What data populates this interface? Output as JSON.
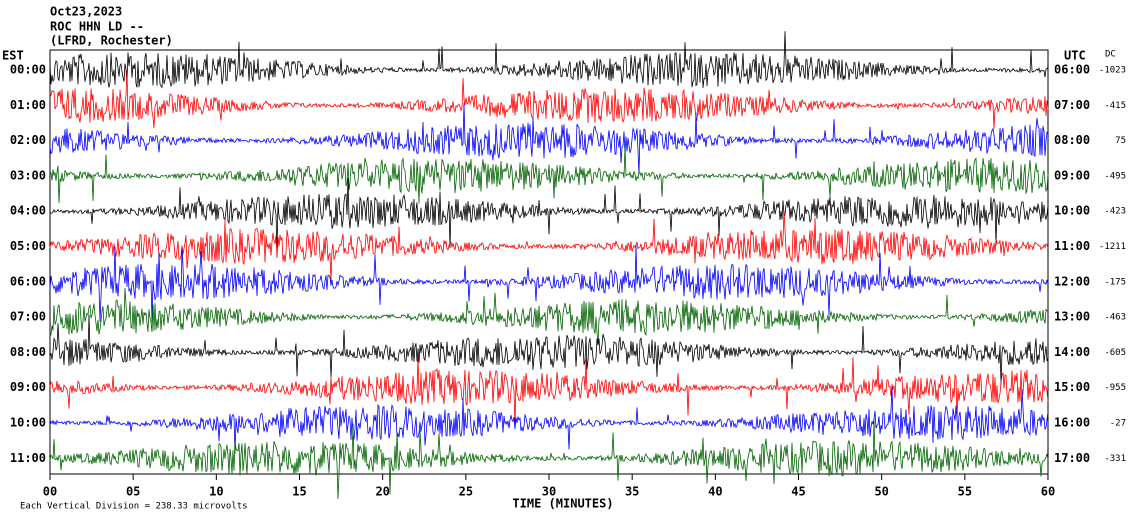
{
  "chart_data": {
    "type": "helicorder",
    "title_lines": [
      "Oct23,2023",
      "ROC HHN LD --",
      "(LFRD, Rochester)"
    ],
    "left_label": "EST",
    "right_label": "UTC",
    "dc_label": "DC",
    "xlabel": "TIME (MINUTES)",
    "footnote": "Each Vertical Division = 238.33 microvolts",
    "xlim": [
      0,
      60
    ],
    "xticks": [
      {
        "value": 0,
        "label": "00"
      },
      {
        "value": 5,
        "label": "05"
      },
      10,
      15,
      20,
      25,
      30,
      35,
      40,
      45,
      50,
      55,
      60
    ],
    "rows": [
      {
        "est": "00:00",
        "utc": "06:00",
        "dc": -1023,
        "color": "#000000"
      },
      {
        "est": "01:00",
        "utc": "07:00",
        "dc": -415,
        "color": "#ff0000"
      },
      {
        "est": "02:00",
        "utc": "08:00",
        "dc": 75,
        "color": "#0000ff"
      },
      {
        "est": "03:00",
        "utc": "09:00",
        "dc": -495,
        "color": "#006400"
      },
      {
        "est": "04:00",
        "utc": "10:00",
        "dc": -423,
        "color": "#000000"
      },
      {
        "est": "05:00",
        "utc": "11:00",
        "dc": -1211,
        "color": "#ff0000"
      },
      {
        "est": "06:00",
        "utc": "12:00",
        "dc": -175,
        "color": "#0000ff"
      },
      {
        "est": "07:00",
        "utc": "13:00",
        "dc": -463,
        "color": "#006400"
      },
      {
        "est": "08:00",
        "utc": "14:00",
        "dc": -605,
        "color": "#000000"
      },
      {
        "est": "09:00",
        "utc": "15:00",
        "dc": -955,
        "color": "#ff0000"
      },
      {
        "est": "10:00",
        "utc": "16:00",
        "dc": -27,
        "color": "#0000ff"
      },
      {
        "est": "11:00",
        "utc": "17:00",
        "dc": -331,
        "color": "#006400"
      }
    ]
  }
}
